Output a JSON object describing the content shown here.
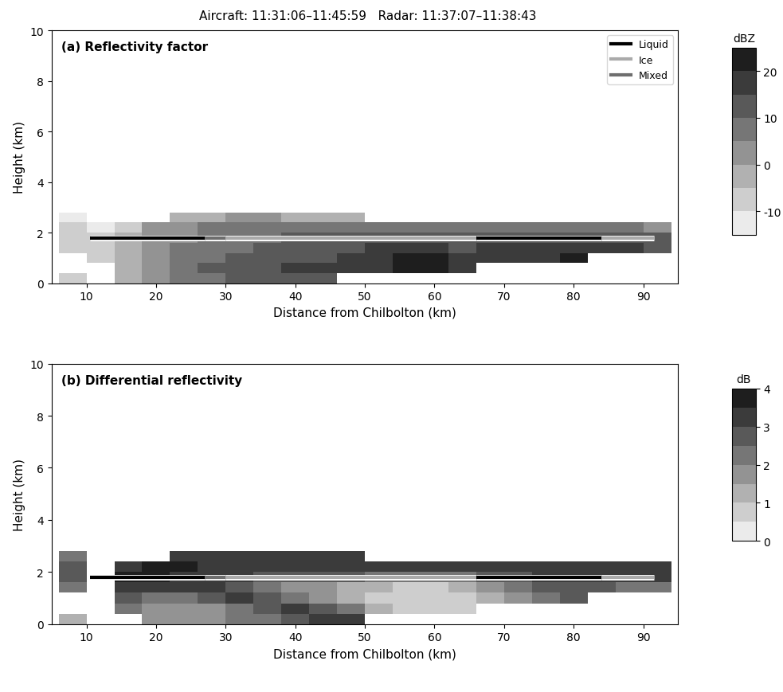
{
  "title": "Aircraft: 11:31:06–11:45:59   Radar: 11:37:07–11:38:43",
  "chart_data": [
    {
      "type": "heatmap",
      "title": "(a) Reflectivity factor",
      "xlabel": "Distance from Chilbolton (km)",
      "ylabel": "Height (km)",
      "xlim": [
        5,
        95
      ],
      "ylim": [
        0,
        10
      ],
      "xticks": [
        10,
        20,
        30,
        40,
        50,
        60,
        70,
        80,
        90
      ],
      "yticks": [
        0,
        2,
        4,
        6,
        8,
        10
      ],
      "x_edges": [
        6,
        10,
        14,
        18,
        22,
        26,
        30,
        34,
        38,
        42,
        46,
        50,
        54,
        58,
        62,
        66,
        70,
        74,
        78,
        82,
        86,
        90,
        94
      ],
      "y_edges": [
        0,
        0.4,
        0.8,
        1.2,
        1.6,
        2.0,
        2.4,
        2.8
      ],
      "cells": [
        [
          -10,
          null,
          -5,
          0,
          5,
          8,
          10,
          12,
          12,
          12,
          null,
          null,
          null,
          null,
          null,
          null,
          null,
          null,
          null,
          null,
          null,
          null
        ],
        [
          null,
          null,
          -5,
          0,
          5,
          10,
          12,
          14,
          15,
          15,
          17,
          18,
          20,
          20,
          18,
          null,
          null,
          null,
          null,
          null,
          null,
          null
        ],
        [
          null,
          -10,
          -5,
          2,
          5,
          8,
          10,
          12,
          14,
          14,
          15,
          18,
          20,
          20,
          18,
          16,
          15,
          18,
          20,
          null,
          null,
          null
        ],
        [
          -10,
          -10,
          -5,
          0,
          5,
          8,
          8,
          10,
          12,
          12,
          14,
          15,
          15,
          15,
          14,
          15,
          15,
          18,
          18,
          18,
          15,
          12
        ],
        [
          -10,
          -10,
          -5,
          0,
          3,
          5,
          8,
          8,
          10,
          10,
          10,
          12,
          12,
          12,
          12,
          12,
          12,
          12,
          12,
          12,
          10,
          10
        ],
        [
          -10,
          -12,
          -10,
          0,
          2,
          5,
          5,
          5,
          5,
          5,
          5,
          5,
          5,
          5,
          5,
          5,
          5,
          5,
          5,
          5,
          5,
          2
        ],
        [
          -12,
          null,
          null,
          null,
          -5,
          -5,
          0,
          0,
          -5,
          -5,
          -5,
          null,
          null,
          null,
          null,
          null,
          null,
          null,
          null,
          null,
          null,
          null
        ]
      ],
      "colorbar": {
        "label": "dBZ",
        "range": [
          -15,
          25
        ],
        "ticks": [
          -10,
          0,
          10,
          20
        ],
        "boundaries": [
          -15,
          -10,
          -5,
          0,
          5,
          10,
          15,
          20,
          25
        ]
      },
      "aircraft_track": {
        "height": 1.8,
        "segments": [
          {
            "phase": "Liquid",
            "x": [
              10.5,
              27
            ]
          },
          {
            "phase": "Mixed",
            "x": [
              27,
              30
            ]
          },
          {
            "phase": "Ice",
            "x": [
              30,
              66
            ]
          },
          {
            "phase": "Liquid",
            "x": [
              66,
              84
            ]
          },
          {
            "phase": "Ice",
            "x": [
              84,
              91.5
            ]
          }
        ]
      },
      "series": [
        {
          "name": "Liquid",
          "color": "#000000"
        },
        {
          "name": "Ice",
          "color": "#aaaaaa"
        },
        {
          "name": "Mixed",
          "color": "#6e6e6e"
        }
      ],
      "legend": "upper right"
    },
    {
      "type": "heatmap",
      "title": "(b) Differential reflectivity",
      "xlabel": "Distance from Chilbolton (km)",
      "ylabel": "Height (km)",
      "xlim": [
        5,
        95
      ],
      "ylim": [
        0,
        10
      ],
      "xticks": [
        10,
        20,
        30,
        40,
        50,
        60,
        70,
        80,
        90
      ],
      "yticks": [
        0,
        2,
        4,
        6,
        8,
        10
      ],
      "x_edges": [
        6,
        10,
        14,
        18,
        22,
        26,
        30,
        34,
        38,
        42,
        46,
        50,
        54,
        58,
        62,
        66,
        70,
        74,
        78,
        82,
        86,
        90,
        94
      ],
      "y_edges": [
        0,
        0.4,
        0.8,
        1.2,
        1.6,
        2.0,
        2.4,
        2.8
      ],
      "cells": [
        [
          1,
          null,
          null,
          1.5,
          1.5,
          1.5,
          2,
          2,
          2.5,
          3,
          3,
          null,
          null,
          null,
          null,
          null,
          null,
          null,
          null,
          null,
          null,
          null
        ],
        [
          null,
          null,
          2,
          1.5,
          1.5,
          1.5,
          2,
          2.5,
          3,
          2.5,
          2,
          1,
          0.5,
          0.5,
          0.5,
          null,
          null,
          null,
          null,
          null,
          null,
          null
        ],
        [
          null,
          null,
          2.5,
          2,
          2,
          2.5,
          3,
          2.5,
          2,
          1.5,
          1,
          0.5,
          0.5,
          0.5,
          0.5,
          1,
          1.5,
          2,
          2.5,
          null,
          null,
          null
        ],
        [
          2,
          null,
          3,
          3,
          3,
          3,
          2.5,
          2,
          1.5,
          1.5,
          1,
          1,
          0.5,
          0.5,
          1,
          1.5,
          2,
          2.5,
          2.5,
          2.5,
          2,
          2
        ],
        [
          2.5,
          null,
          3.5,
          3.5,
          3,
          3,
          3,
          2.5,
          2.5,
          2.5,
          2.5,
          2,
          2,
          2,
          2,
          2.5,
          2.5,
          3,
          3,
          3,
          3,
          3
        ],
        [
          2.5,
          null,
          3,
          3.5,
          3.5,
          3,
          3,
          3,
          3,
          3,
          3,
          3,
          3,
          3,
          3,
          3,
          3,
          3,
          3,
          3,
          3,
          3
        ],
        [
          2,
          null,
          null,
          null,
          3,
          3,
          3,
          3,
          3,
          3,
          3,
          null,
          null,
          null,
          null,
          null,
          null,
          null,
          null,
          null,
          null,
          null
        ]
      ],
      "colorbar": {
        "label": "dB",
        "range": [
          0,
          4
        ],
        "ticks": [
          0,
          1,
          2,
          3,
          4
        ],
        "boundaries": [
          0,
          0.5,
          1,
          1.5,
          2,
          2.5,
          3,
          3.5,
          4
        ]
      },
      "aircraft_track": {
        "height": 1.8,
        "segments": [
          {
            "phase": "Liquid",
            "x": [
              10.5,
              27
            ]
          },
          {
            "phase": "Mixed",
            "x": [
              27,
              30
            ]
          },
          {
            "phase": "Ice",
            "x": [
              30,
              66
            ]
          },
          {
            "phase": "Liquid",
            "x": [
              66,
              84
            ]
          },
          {
            "phase": "Ice",
            "x": [
              84,
              91.5
            ]
          }
        ]
      },
      "series": [
        {
          "name": "Liquid",
          "color": "#000000"
        },
        {
          "name": "Ice",
          "color": "#aaaaaa"
        },
        {
          "name": "Mixed",
          "color": "#6e6e6e"
        }
      ]
    }
  ]
}
